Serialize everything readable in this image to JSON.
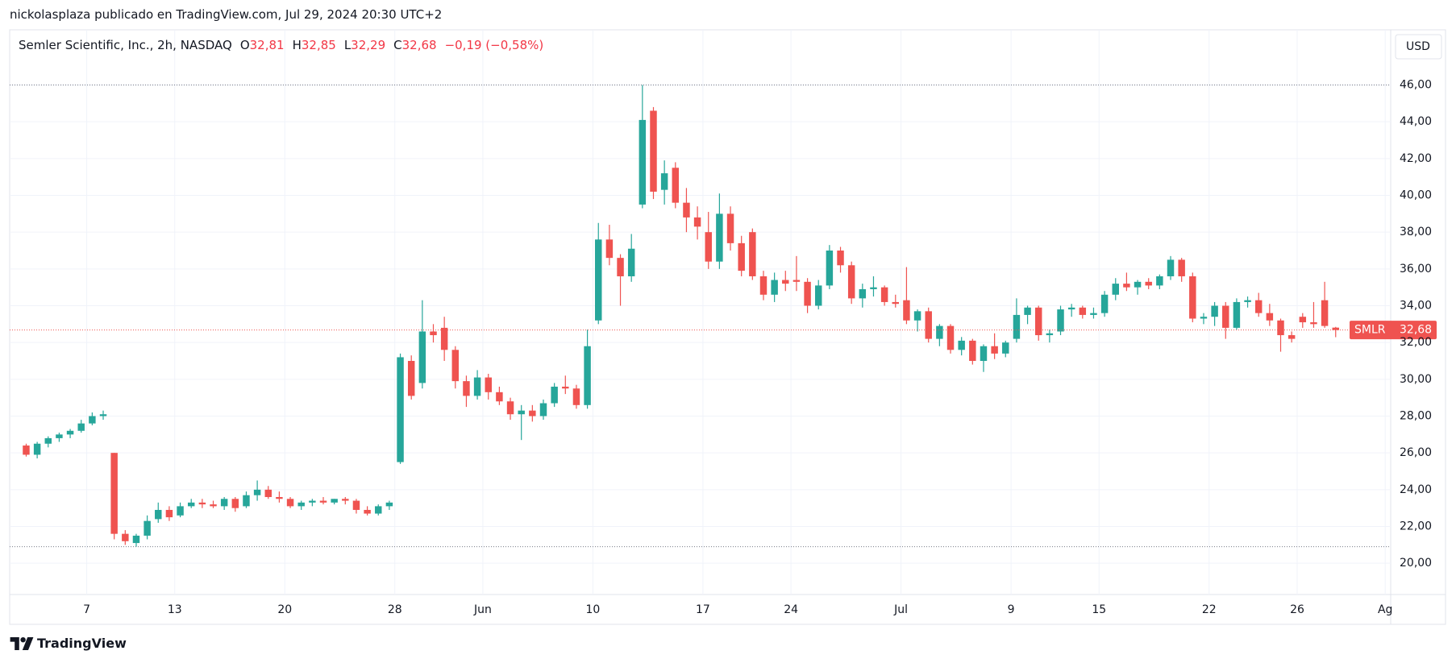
{
  "header": "nickolasplaza publicado en TradingView.com, Jul 29, 2024 20:30 UTC+2",
  "chart_data": {
    "type": "candlestick",
    "title": "Semler Scientific, Inc., 2h, NASDAQ",
    "legend": [
      {
        "key": "O",
        "value": "32,81"
      },
      {
        "key": "H",
        "value": "32,85"
      },
      {
        "key": "L",
        "value": "32,29"
      },
      {
        "key": "C",
        "value": "32,68"
      }
    ],
    "change": "−0,19 (−0,58%)",
    "currency": "USD",
    "up_color": "#26a69a",
    "down_color": "#ef5350",
    "candles": [
      [
        26.4,
        26.5,
        25.8,
        25.9
      ],
      [
        25.9,
        26.6,
        25.7,
        26.5
      ],
      [
        26.5,
        26.9,
        26.3,
        26.8
      ],
      [
        26.8,
        27.1,
        26.6,
        27.0
      ],
      [
        27.0,
        27.3,
        26.8,
        27.2
      ],
      [
        27.2,
        27.8,
        27.1,
        27.6
      ],
      [
        27.6,
        28.2,
        27.5,
        28.0
      ],
      [
        28.0,
        28.3,
        27.8,
        28.1
      ],
      [
        26.0,
        26.0,
        21.3,
        21.6
      ],
      [
        21.6,
        21.8,
        21.0,
        21.2
      ],
      [
        21.1,
        21.6,
        20.9,
        21.5
      ],
      [
        21.5,
        22.6,
        21.3,
        22.3
      ],
      [
        22.4,
        23.3,
        22.2,
        22.9
      ],
      [
        22.9,
        23.1,
        22.3,
        22.5
      ],
      [
        22.6,
        23.3,
        22.5,
        23.1
      ],
      [
        23.1,
        23.5,
        23.0,
        23.3
      ],
      [
        23.3,
        23.5,
        23.0,
        23.2
      ],
      [
        23.2,
        23.4,
        23.0,
        23.1
      ],
      [
        23.1,
        23.6,
        22.9,
        23.5
      ],
      [
        23.5,
        23.6,
        22.8,
        23.0
      ],
      [
        23.1,
        23.9,
        23.0,
        23.7
      ],
      [
        23.7,
        24.5,
        23.4,
        24.0
      ],
      [
        24.0,
        24.2,
        23.5,
        23.6
      ],
      [
        23.6,
        23.9,
        23.3,
        23.5
      ],
      [
        23.5,
        23.6,
        23.0,
        23.1
      ],
      [
        23.1,
        23.4,
        22.9,
        23.3
      ],
      [
        23.3,
        23.5,
        23.1,
        23.4
      ],
      [
        23.4,
        23.6,
        23.2,
        23.3
      ],
      [
        23.3,
        23.5,
        23.2,
        23.5
      ],
      [
        23.5,
        23.6,
        23.2,
        23.4
      ],
      [
        23.4,
        23.5,
        22.7,
        22.9
      ],
      [
        22.9,
        23.1,
        22.6,
        22.7
      ],
      [
        22.7,
        23.2,
        22.6,
        23.1
      ],
      [
        23.1,
        23.4,
        22.9,
        23.3
      ],
      [
        25.5,
        31.4,
        25.4,
        31.2
      ],
      [
        31.0,
        31.3,
        28.9,
        29.1
      ],
      [
        29.8,
        34.3,
        29.5,
        32.6
      ],
      [
        32.6,
        33.0,
        32.0,
        32.4
      ],
      [
        32.8,
        33.4,
        31.0,
        31.6
      ],
      [
        31.6,
        31.8,
        29.5,
        29.9
      ],
      [
        29.9,
        30.2,
        28.5,
        29.1
      ],
      [
        29.1,
        30.5,
        28.9,
        30.1
      ],
      [
        30.1,
        30.3,
        28.9,
        29.3
      ],
      [
        29.3,
        29.6,
        28.6,
        28.8
      ],
      [
        28.8,
        29.0,
        27.8,
        28.1
      ],
      [
        28.1,
        28.6,
        26.7,
        28.3
      ],
      [
        28.3,
        28.6,
        27.7,
        28.0
      ],
      [
        28.0,
        28.9,
        27.8,
        28.7
      ],
      [
        28.7,
        29.8,
        28.5,
        29.6
      ],
      [
        29.6,
        30.2,
        29.2,
        29.5
      ],
      [
        29.5,
        29.7,
        28.4,
        28.6
      ],
      [
        28.6,
        32.7,
        28.4,
        31.8
      ],
      [
        33.2,
        38.5,
        33.0,
        37.6
      ],
      [
        37.6,
        38.4,
        36.2,
        36.6
      ],
      [
        36.6,
        36.8,
        34.0,
        35.6
      ],
      [
        35.6,
        37.9,
        35.3,
        37.1
      ],
      [
        39.5,
        46.0,
        39.3,
        44.1
      ],
      [
        44.6,
        44.8,
        39.8,
        40.2
      ],
      [
        40.3,
        41.9,
        39.5,
        41.2
      ],
      [
        41.5,
        41.8,
        39.3,
        39.6
      ],
      [
        39.6,
        40.4,
        38.0,
        38.8
      ],
      [
        38.8,
        39.4,
        37.6,
        38.3
      ],
      [
        38.0,
        39.1,
        36.0,
        36.4
      ],
      [
        36.4,
        40.1,
        36.0,
        39.0
      ],
      [
        39.0,
        39.4,
        37.0,
        37.4
      ],
      [
        37.4,
        37.8,
        35.6,
        35.9
      ],
      [
        38.0,
        38.2,
        35.4,
        35.6
      ],
      [
        35.6,
        35.9,
        34.3,
        34.6
      ],
      [
        34.6,
        35.8,
        34.2,
        35.4
      ],
      [
        35.4,
        35.9,
        34.8,
        35.2
      ],
      [
        35.4,
        36.7,
        34.8,
        35.3
      ],
      [
        35.3,
        35.5,
        33.6,
        34.0
      ],
      [
        34.0,
        35.4,
        33.8,
        35.1
      ],
      [
        35.1,
        37.3,
        34.9,
        37.0
      ],
      [
        37.0,
        37.2,
        35.8,
        36.2
      ],
      [
        36.2,
        36.4,
        34.1,
        34.4
      ],
      [
        34.4,
        35.2,
        33.9,
        34.9
      ],
      [
        34.9,
        35.6,
        34.5,
        35.0
      ],
      [
        35.0,
        35.1,
        34.0,
        34.2
      ],
      [
        34.2,
        34.6,
        33.9,
        34.1
      ],
      [
        34.3,
        36.1,
        33.0,
        33.2
      ],
      [
        33.2,
        33.8,
        32.6,
        33.7
      ],
      [
        33.7,
        33.9,
        32.0,
        32.2
      ],
      [
        32.2,
        33.0,
        31.8,
        32.9
      ],
      [
        32.9,
        33.0,
        31.4,
        31.6
      ],
      [
        31.6,
        32.3,
        31.3,
        32.1
      ],
      [
        32.1,
        32.2,
        30.8,
        31.0
      ],
      [
        31.0,
        31.9,
        30.4,
        31.8
      ],
      [
        31.8,
        32.5,
        31.1,
        31.4
      ],
      [
        31.4,
        32.1,
        31.2,
        32.0
      ],
      [
        32.2,
        34.4,
        32.0,
        33.5
      ],
      [
        33.5,
        34.0,
        33.0,
        33.9
      ],
      [
        33.9,
        34.0,
        32.1,
        32.4
      ],
      [
        32.4,
        32.7,
        32.0,
        32.5
      ],
      [
        32.6,
        34.0,
        32.4,
        33.8
      ],
      [
        33.8,
        34.1,
        33.4,
        33.9
      ],
      [
        33.9,
        34.0,
        33.3,
        33.5
      ],
      [
        33.5,
        33.9,
        33.3,
        33.6
      ],
      [
        33.6,
        34.8,
        33.4,
        34.6
      ],
      [
        34.6,
        35.5,
        34.3,
        35.2
      ],
      [
        35.2,
        35.8,
        34.8,
        35.0
      ],
      [
        35.0,
        35.4,
        34.6,
        35.3
      ],
      [
        35.3,
        35.5,
        34.9,
        35.1
      ],
      [
        35.1,
        35.7,
        34.9,
        35.6
      ],
      [
        35.6,
        36.7,
        35.4,
        36.5
      ],
      [
        36.5,
        36.6,
        35.3,
        35.6
      ],
      [
        35.6,
        35.8,
        33.1,
        33.3
      ],
      [
        33.3,
        33.6,
        33.0,
        33.4
      ],
      [
        33.4,
        34.2,
        32.9,
        34.0
      ],
      [
        34.0,
        34.2,
        32.2,
        32.8
      ],
      [
        32.8,
        34.4,
        32.7,
        34.2
      ],
      [
        34.2,
        34.5,
        33.9,
        34.3
      ],
      [
        34.3,
        34.7,
        33.4,
        33.6
      ],
      [
        33.6,
        34.1,
        32.9,
        33.2
      ],
      [
        33.2,
        33.3,
        31.5,
        32.4
      ],
      [
        32.4,
        32.6,
        32.0,
        32.2
      ],
      [
        33.4,
        33.6,
        32.8,
        33.1
      ],
      [
        33.1,
        34.2,
        32.8,
        33.0
      ],
      [
        34.3,
        35.3,
        32.8,
        32.9
      ],
      [
        32.81,
        32.85,
        32.29,
        32.68
      ]
    ],
    "xlim": [
      -1,
      124.5
    ],
    "xticks": [
      {
        "value": 6,
        "label": "7"
      },
      {
        "value": 14,
        "label": "13"
      },
      {
        "value": 24,
        "label": "20"
      },
      {
        "value": 34,
        "label": "28"
      },
      {
        "value": 42,
        "label": "Jun"
      },
      {
        "value": 52,
        "label": "10"
      },
      {
        "value": 62,
        "label": "17"
      },
      {
        "value": 70,
        "label": "24"
      },
      {
        "value": 80,
        "label": "Jul"
      },
      {
        "value": 90,
        "label": "9"
      },
      {
        "value": 98,
        "label": "15"
      },
      {
        "value": 108,
        "label": "22"
      },
      {
        "value": 116,
        "label": "26"
      },
      {
        "value": 124,
        "label": "Ag"
      }
    ],
    "ylim": [
      18.3,
      49.0
    ],
    "yticks": [
      {
        "value": 20,
        "label": "20,00"
      },
      {
        "value": 22,
        "label": "22,00"
      },
      {
        "value": 24,
        "label": "24,00"
      },
      {
        "value": 26,
        "label": "26,00"
      },
      {
        "value": 28,
        "label": "28,00"
      },
      {
        "value": 30,
        "label": "30,00"
      },
      {
        "value": 32,
        "label": "32,00"
      },
      {
        "value": 34,
        "label": "34,00"
      },
      {
        "value": 36,
        "label": "36,00"
      },
      {
        "value": 38,
        "label": "38,00"
      },
      {
        "value": 40,
        "label": "40,00"
      },
      {
        "value": 42,
        "label": "42,00"
      },
      {
        "value": 44,
        "label": "44,00"
      },
      {
        "value": 46,
        "label": "46,00"
      }
    ],
    "grid": true,
    "price_label": {
      "symbol": "SMLR",
      "value": 32.68,
      "label": "32,68"
    }
  },
  "footer": "TradingView"
}
